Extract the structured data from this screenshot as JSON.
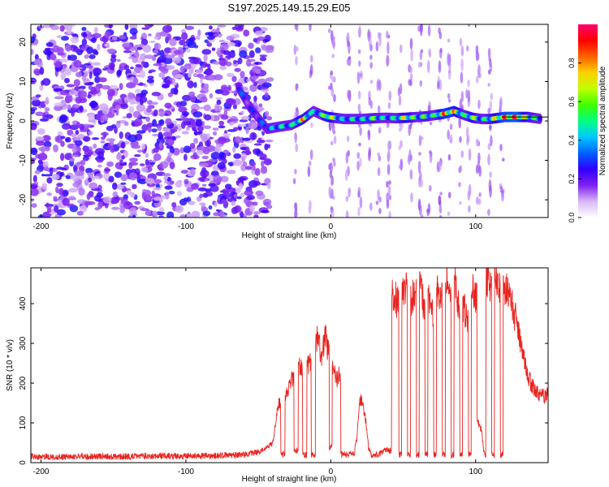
{
  "title": "S197.2025.149.15.29.E05",
  "spectrogram": {
    "xlabel": "Height of straight line (km)",
    "ylabel": "Frequency (Hz)",
    "xlim": [
      -207,
      150
    ],
    "ylim": [
      -24.5,
      24.5
    ],
    "x_ticks": [
      -200,
      -100,
      0,
      100
    ],
    "x_tick_labels": [
      "-200",
      "-100",
      "0",
      "100"
    ],
    "y_ticks": [
      -20,
      -10,
      0,
      10,
      20
    ],
    "y_tick_labels": [
      "-20",
      "-10",
      "0",
      "10",
      "20"
    ],
    "colorbar": {
      "label": "Normalized spectral amplitude",
      "ticks": [
        0,
        0.2,
        0.4,
        0.6,
        0.8
      ],
      "tick_labels": [
        "0.0",
        "0.2",
        "0.4",
        "0.6",
        "0.8"
      ],
      "range": [
        0,
        1
      ],
      "colors": [
        "#ffffff",
        "#d8b8f8",
        "#8020f0",
        "#3000ff",
        "#0060ff",
        "#00c8ff",
        "#00ff80",
        "#40ff00",
        "#c0ff00",
        "#ffd000",
        "#ff6000",
        "#ff0000",
        "#ff0070"
      ]
    },
    "noise_region_x": [
      -207,
      -42
    ],
    "ridge": [
      {
        "x": -64,
        "f": 8.5,
        "amp": 0.35
      },
      {
        "x": -60,
        "f": 6.0,
        "amp": 0.3
      },
      {
        "x": -56,
        "f": 3.5,
        "amp": 0.25
      },
      {
        "x": -44,
        "f": -2.0,
        "amp": 0.35
      },
      {
        "x": -36,
        "f": -1.5,
        "amp": 0.5
      },
      {
        "x": -27,
        "f": -1.0,
        "amp": 0.45
      },
      {
        "x": -19,
        "f": 0.5,
        "amp": 0.8
      },
      {
        "x": -12,
        "f": 2.5,
        "amp": 0.45
      },
      {
        "x": -6,
        "f": 1.5,
        "amp": 0.5
      },
      {
        "x": -2,
        "f": 1.0,
        "amp": 0.8
      },
      {
        "x": 9,
        "f": 0.5,
        "amp": 0.4
      },
      {
        "x": 15,
        "f": 0.5,
        "amp": 0.5
      },
      {
        "x": 22,
        "f": 0.5,
        "amp": 0.45
      },
      {
        "x": 30,
        "f": 0.7,
        "amp": 0.6
      },
      {
        "x": 38,
        "f": 0.8,
        "amp": 0.45
      },
      {
        "x": 45,
        "f": 0.7,
        "amp": 0.5
      },
      {
        "x": 52,
        "f": 0.8,
        "amp": 0.75
      },
      {
        "x": 60,
        "f": 1.0,
        "amp": 0.5
      },
      {
        "x": 67,
        "f": 1.2,
        "amp": 0.6
      },
      {
        "x": 72,
        "f": 1.5,
        "amp": 0.5
      },
      {
        "x": 78,
        "f": 1.8,
        "amp": 0.85
      },
      {
        "x": 85,
        "f": 2.5,
        "amp": 0.8
      },
      {
        "x": 92,
        "f": 1.5,
        "amp": 0.5
      },
      {
        "x": 98,
        "f": 0.8,
        "amp": 0.7
      },
      {
        "x": 104,
        "f": 0.5,
        "amp": 0.45
      },
      {
        "x": 110,
        "f": 0.5,
        "amp": 0.6
      },
      {
        "x": 120,
        "f": 1.0,
        "amp": 0.9
      },
      {
        "x": 128,
        "f": 1.0,
        "amp": 0.95
      },
      {
        "x": 136,
        "f": 1.0,
        "amp": 0.65
      },
      {
        "x": 145,
        "f": 0.5,
        "amp": 0.45
      }
    ],
    "vertical_streaks_x": [
      -24,
      -14,
      0,
      2,
      12,
      20,
      27,
      33,
      40,
      48,
      55,
      62,
      68,
      75,
      82,
      90,
      95,
      102,
      110,
      118
    ]
  },
  "chart_data": [
    {
      "type": "heatmap",
      "title": "S197.2025.149.15.29.E05",
      "xlabel": "Height of straight line (km)",
      "ylabel": "Frequency (Hz)",
      "xlim": [
        -207,
        150
      ],
      "ylim": [
        -24.5,
        24.5
      ],
      "value_label": "Normalized spectral amplitude",
      "value_range": [
        0,
        1
      ]
    },
    {
      "type": "line",
      "xlabel": "Height of straight line (km)",
      "ylabel": "SNR (10 * v/v)",
      "xlim": [
        -207,
        150
      ],
      "ylim": [
        0,
        490
      ],
      "x_ticks": [
        -200,
        -100,
        0,
        100
      ],
      "x_tick_labels": [
        "-200",
        "-100",
        "0",
        "100"
      ],
      "y_ticks": [
        0,
        100,
        200,
        300,
        400
      ],
      "y_tick_labels": [
        "0",
        "100",
        "200",
        "300",
        "400"
      ],
      "color": "#e8231f",
      "series": [
        {
          "x": [
            -207,
            -190,
            -170,
            -150,
            -130,
            -110,
            -90,
            -70,
            -55,
            -48,
            -44,
            -40,
            -36,
            -33,
            -30,
            -27,
            -24,
            -21,
            -18,
            -15,
            -12,
            -9,
            -6,
            -4,
            -2,
            0,
            2,
            4,
            6,
            8,
            10,
            12,
            14,
            16,
            18,
            20,
            22,
            24,
            26,
            28,
            30,
            33,
            36,
            40,
            44,
            46,
            48,
            50,
            52,
            54,
            56,
            58,
            60,
            62,
            64,
            66,
            68,
            70,
            72,
            74,
            76,
            78,
            80,
            82,
            84,
            86,
            88,
            90,
            92,
            94,
            96,
            98,
            100,
            102,
            104,
            106,
            108,
            110,
            112,
            114,
            116,
            118,
            120,
            122,
            124,
            126,
            128,
            130,
            132,
            134,
            136,
            138,
            140,
            142,
            144,
            146,
            148,
            150
          ],
          "y": [
            15,
            14,
            16,
            15,
            17,
            16,
            17,
            18,
            22,
            30,
            40,
            50,
            150,
            20,
            170,
            210,
            30,
            240,
            20,
            250,
            20,
            310,
            260,
            330,
            280,
            40,
            240,
            210,
            220,
            20,
            20,
            20,
            25,
            20,
            60,
            160,
            150,
            110,
            40,
            20,
            20,
            20,
            30,
            30,
            420,
            400,
            20,
            420,
            440,
            20,
            410,
            430,
            20,
            450,
            400,
            20,
            420,
            380,
            20,
            440,
            420,
            20,
            470,
            440,
            20,
            450,
            400,
            20,
            390,
            360,
            20,
            440,
            420,
            100,
            80,
            20,
            460,
            450,
            20,
            470,
            440,
            20,
            440,
            430,
            410,
            380,
            360,
            320,
            280,
            250,
            220,
            200,
            190,
            180,
            170,
            170,
            165,
            180
          ]
        }
      ]
    }
  ]
}
